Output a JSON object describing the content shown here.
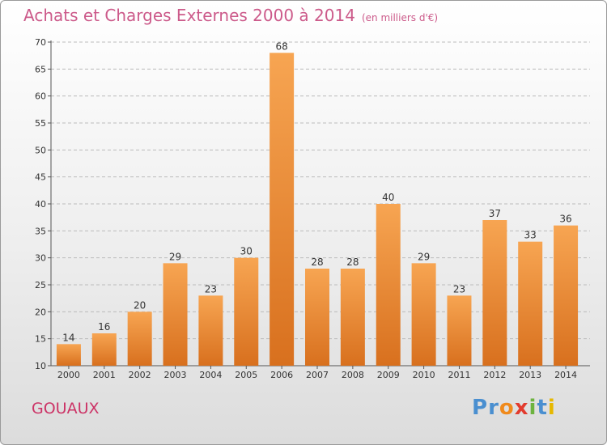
{
  "header": {
    "title": "Achats et Charges Externes 2000 à 2014",
    "subtitle": "(en milliers d'€)"
  },
  "footer": {
    "commune": "GOUAUX",
    "logo": {
      "text": "Proxiti",
      "letters": [
        "P",
        "r",
        "o",
        "x",
        "i",
        "t",
        "i"
      ],
      "colors": [
        "#4a8fd0",
        "#4a8fd0",
        "#f08a1c",
        "#e23b2e",
        "#6db33f",
        "#4a8fd0",
        "#e6b800"
      ]
    }
  },
  "colors": {
    "bar_light": "#f7a552",
    "bar_dark": "#d8701e",
    "title": "#cc5a8a",
    "commune": "#cc3366",
    "grid": "#bbbbbb",
    "text": "#333333"
  },
  "chart_data": {
    "type": "bar",
    "title": "Achats et Charges Externes 2000 à 2014",
    "subtitle": "(en milliers d'€)",
    "categories": [
      "2000",
      "2001",
      "2002",
      "2003",
      "2004",
      "2005",
      "2006",
      "2007",
      "2008",
      "2009",
      "2010",
      "2011",
      "2012",
      "2013",
      "2014"
    ],
    "values": [
      14,
      16,
      20,
      29,
      23,
      30,
      68,
      28,
      28,
      40,
      29,
      23,
      37,
      33,
      36
    ],
    "ylim": [
      10,
      70
    ],
    "yticks": [
      10,
      15,
      20,
      25,
      30,
      35,
      40,
      45,
      50,
      55,
      60,
      65,
      70
    ],
    "grid": "horizontal dashed",
    "data_labels": true
  }
}
